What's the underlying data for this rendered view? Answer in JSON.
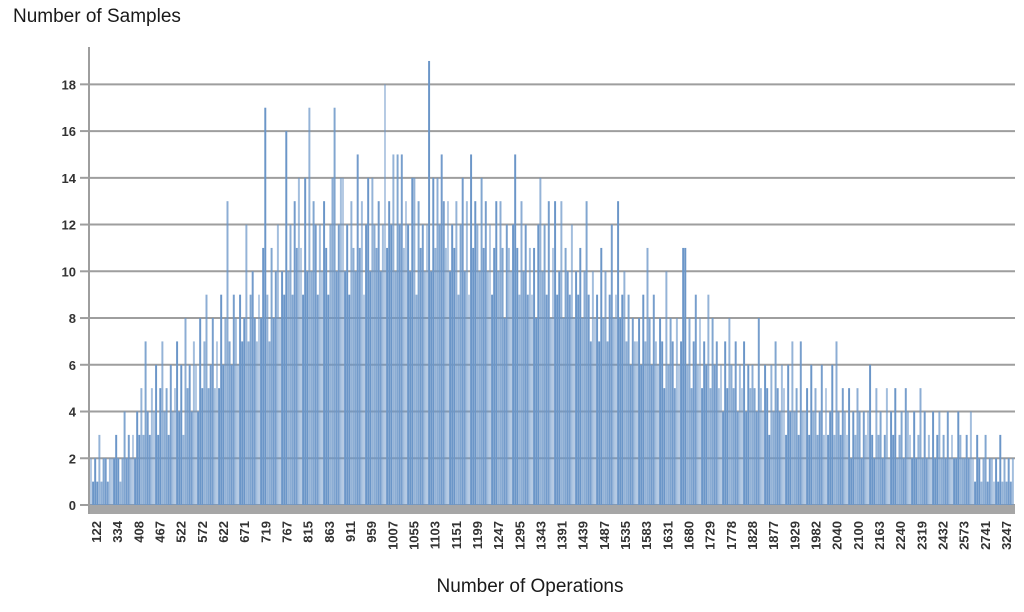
{
  "chart_data": {
    "type": "bar",
    "title": "Number of Samples",
    "xlabel": "Number of Operations",
    "ylabel": "",
    "ylim": [
      0,
      19
    ],
    "grid": true,
    "legend_position": "none",
    "y_ticks": [
      0,
      2,
      4,
      6,
      8,
      10,
      12,
      14,
      16,
      18
    ],
    "x_tick_interval": 10,
    "x_tick_labels": [
      "122",
      "334",
      "408",
      "467",
      "522",
      "572",
      "622",
      "671",
      "719",
      "767",
      "815",
      "863",
      "911",
      "959",
      "1007",
      "1055",
      "1103",
      "1151",
      "1199",
      "1247",
      "1295",
      "1343",
      "1391",
      "1439",
      "1487",
      "1535",
      "1583",
      "1631",
      "1680",
      "1729",
      "1778",
      "1828",
      "1877",
      "1929",
      "1982",
      "2040",
      "2100",
      "2163",
      "2240",
      "2319",
      "2432",
      "2573",
      "2741",
      "3247"
    ],
    "colors": {
      "bar": "#6b96c8",
      "gridline": "#9e9e9e",
      "axis_line": "#9e9e9e",
      "baseline_band": "#a6a6a6",
      "tick_text": "#333333"
    },
    "values": [
      2,
      1,
      2,
      1,
      3,
      1,
      2,
      2,
      1,
      2,
      2,
      2,
      3,
      2,
      1,
      2,
      4,
      2,
      3,
      2,
      3,
      2,
      4,
      3,
      5,
      3,
      7,
      4,
      3,
      5,
      4,
      6,
      3,
      5,
      7,
      4,
      5,
      3,
      6,
      4,
      5,
      7,
      4,
      6,
      3,
      8,
      5,
      6,
      4,
      7,
      6,
      4,
      8,
      5,
      7,
      9,
      5,
      6,
      8,
      5,
      7,
      5,
      9,
      6,
      8,
      13,
      7,
      6,
      9,
      8,
      6,
      9,
      7,
      8,
      12,
      7,
      9,
      10,
      8,
      7,
      9,
      8,
      11,
      17,
      9,
      7,
      11,
      8,
      10,
      12,
      8,
      10,
      9,
      16,
      10,
      12,
      9,
      13,
      11,
      14,
      11,
      9,
      14,
      10,
      17,
      10,
      13,
      12,
      9,
      12,
      10,
      13,
      11,
      9,
      12,
      14,
      17,
      10,
      12,
      14,
      14,
      10,
      12,
      9,
      13,
      11,
      10,
      15,
      11,
      13,
      9,
      12,
      14,
      10,
      14,
      12,
      11,
      13,
      10,
      12,
      18,
      11,
      13,
      12,
      15,
      10,
      15,
      12,
      15,
      11,
      13,
      12,
      10,
      14,
      14,
      9,
      13,
      11,
      12,
      10,
      12,
      19,
      10,
      14,
      11,
      14,
      12,
      15,
      13,
      11,
      13,
      10,
      12,
      11,
      13,
      9,
      12,
      14,
      10,
      13,
      9,
      15,
      11,
      13,
      12,
      10,
      14,
      11,
      13,
      10,
      12,
      9,
      11,
      13,
      10,
      13,
      11,
      8,
      12,
      11,
      10,
      12,
      15,
      11,
      9,
      13,
      10,
      12,
      9,
      11,
      9,
      11,
      8,
      12,
      14,
      10,
      12,
      9,
      13,
      8,
      11,
      13,
      9,
      10,
      13,
      8,
      11,
      10,
      9,
      12,
      8,
      10,
      9,
      11,
      8,
      10,
      13,
      9,
      7,
      10,
      8,
      9,
      7,
      11,
      8,
      10,
      7,
      9,
      12,
      8,
      9,
      13,
      8,
      9,
      10,
      7,
      9,
      6,
      8,
      7,
      7,
      8,
      6,
      9,
      7,
      11,
      8,
      6,
      9,
      7,
      6,
      8,
      7,
      5,
      10,
      6,
      8,
      7,
      5,
      8,
      6,
      7,
      11,
      11,
      6,
      8,
      5,
      7,
      9,
      6,
      8,
      5,
      7,
      6,
      9,
      5,
      8,
      6,
      7,
      5,
      6,
      4,
      7,
      5,
      8,
      6,
      5,
      7,
      4,
      6,
      5,
      7,
      4,
      6,
      5,
      6,
      5,
      4,
      8,
      5,
      4,
      6,
      5,
      3,
      6,
      4,
      7,
      5,
      4,
      6,
      5,
      3,
      6,
      4,
      7,
      4,
      5,
      3,
      7,
      4,
      4,
      5,
      3,
      6,
      4,
      5,
      3,
      4,
      6,
      3,
      5,
      3,
      4,
      6,
      3,
      7,
      4,
      3,
      5,
      4,
      3,
      5,
      2,
      4,
      3,
      5,
      4,
      2,
      4,
      3,
      4,
      6,
      3,
      2,
      5,
      3,
      4,
      2,
      3,
      5,
      2,
      4,
      3,
      5,
      2,
      3,
      4,
      2,
      5,
      4,
      3,
      2,
      4,
      2,
      3,
      5,
      2,
      4,
      2,
      3,
      2,
      4,
      2,
      3,
      4,
      2,
      3,
      2,
      4,
      2,
      3,
      2,
      2,
      4,
      3,
      2,
      2,
      3,
      2,
      4,
      2,
      1,
      3,
      2,
      1,
      2,
      3,
      1,
      2,
      2,
      1,
      2,
      1,
      3,
      1,
      2,
      1,
      2,
      1,
      2
    ]
  }
}
